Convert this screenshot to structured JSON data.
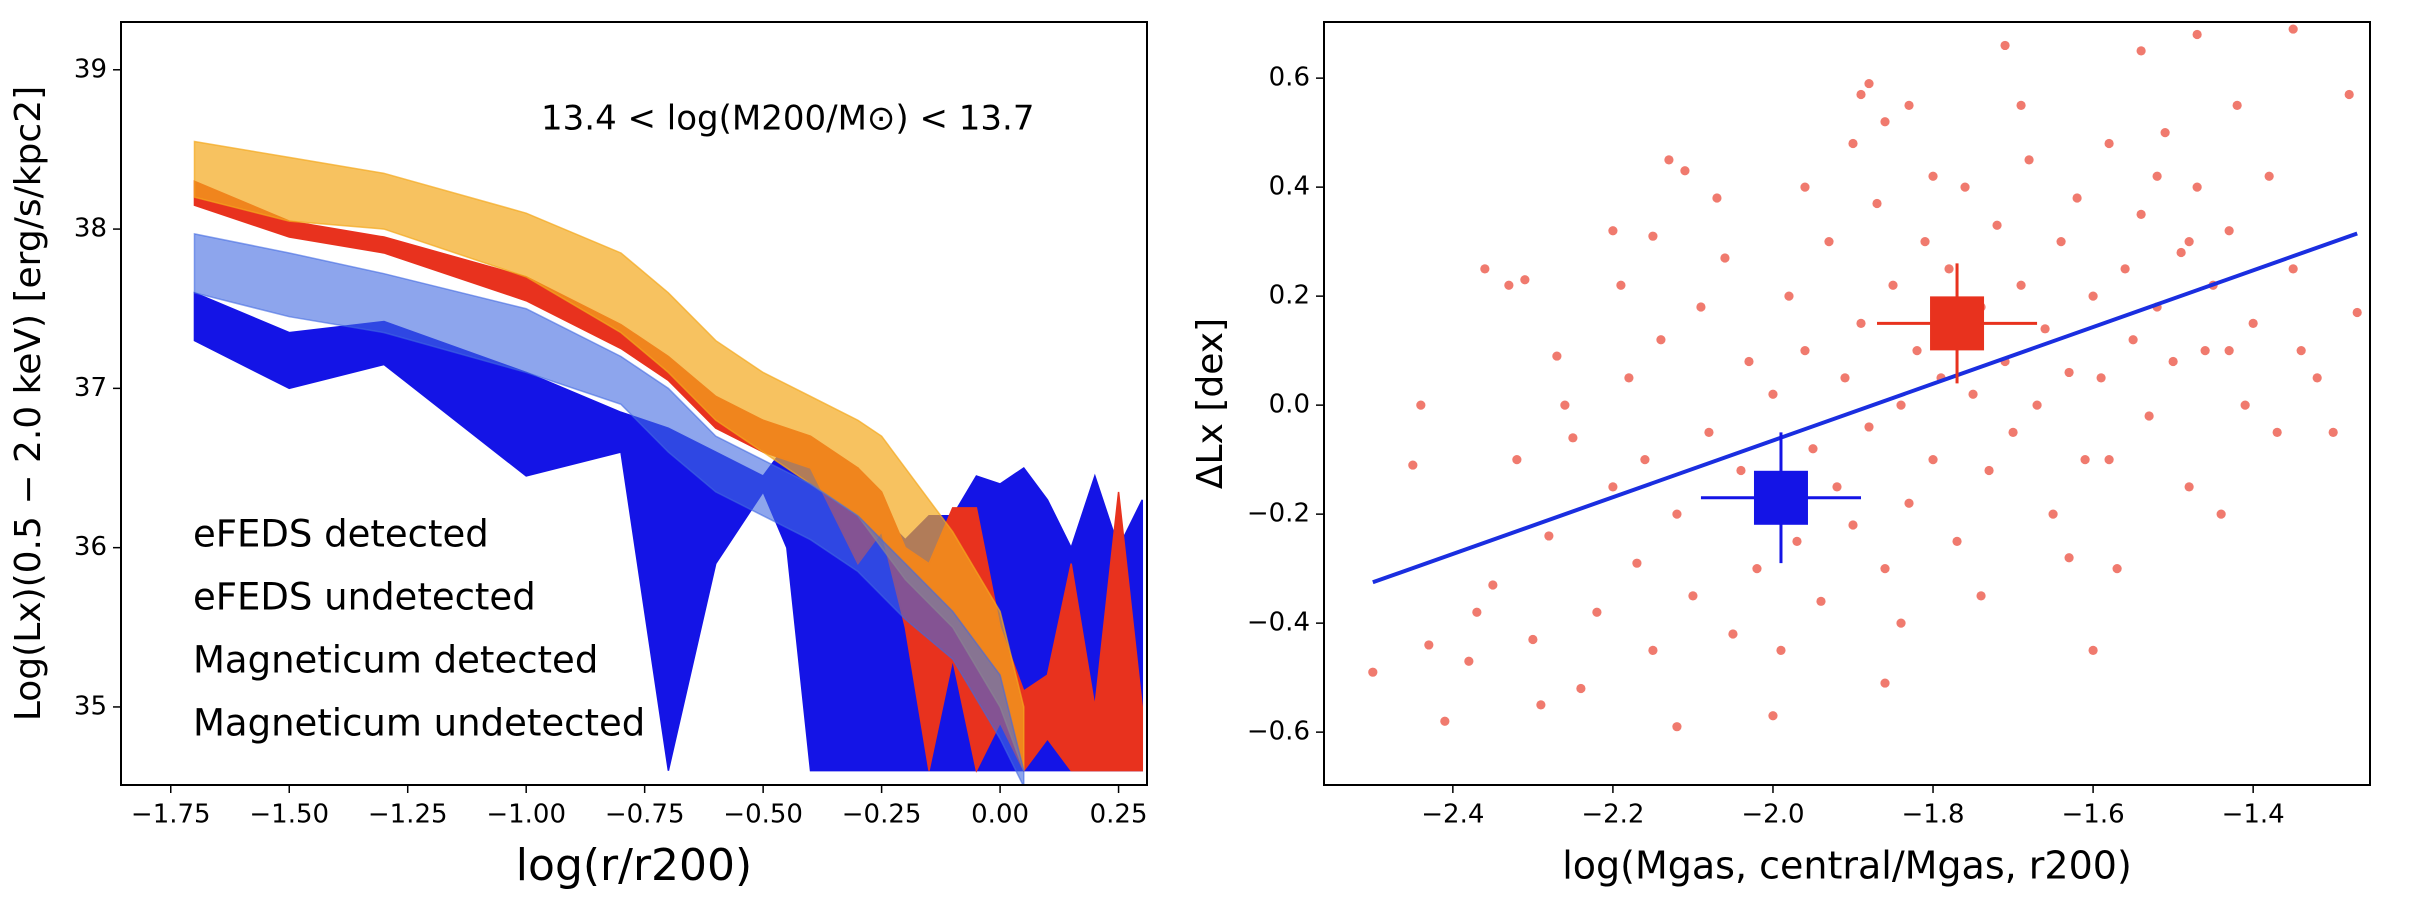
{
  "chart_data": [
    {
      "type": "area",
      "annotation": "13.4 < log(M200/M⊙) < 13.7",
      "xlabel": "log(r/r200)",
      "ylabel": "Log(Lx)(0.5 − 2.0 keV) [erg/s/kpc2]",
      "xlim": [
        -1.855,
        0.31
      ],
      "ylim": [
        34.51,
        39.3
      ],
      "xticks": [
        {
          "value": -1.75,
          "label": "−1.75"
        },
        {
          "value": -1.5,
          "label": "−1.50"
        },
        {
          "value": -1.25,
          "label": "−1.25"
        },
        {
          "value": -1.0,
          "label": "−1.00"
        },
        {
          "value": -0.75,
          "label": "−0.75"
        },
        {
          "value": -0.5,
          "label": "−0.50"
        },
        {
          "value": -0.25,
          "label": "−0.25"
        },
        {
          "value": 0,
          "label": "0.00"
        },
        0.25
      ],
      "yticks": [
        35,
        36,
        37,
        38,
        39
      ],
      "legend": "lower left",
      "series": [
        {
          "name": "eFEDS detected",
          "color": "#e8321e",
          "alpha": 1,
          "x": [
            -1.7,
            -1.5,
            -1.3,
            -1.0,
            -0.8,
            -0.7,
            -0.6,
            -0.5,
            -0.4,
            -0.3,
            -0.25,
            -0.2,
            -0.15,
            -0.1,
            -0.05,
            0.0,
            0.05,
            0.1,
            0.15,
            0.2,
            0.25,
            0.3
          ],
          "upper": [
            38.3,
            38.05,
            37.95,
            37.7,
            37.4,
            37.2,
            36.95,
            36.8,
            36.7,
            36.5,
            36.35,
            36.0,
            35.9,
            36.25,
            36.25,
            35.5,
            35.1,
            35.2,
            35.9,
            35.0,
            36.35,
            35.0
          ],
          "lower": [
            38.15,
            37.95,
            37.85,
            37.55,
            37.25,
            37.05,
            36.75,
            36.6,
            36.5,
            35.9,
            36.1,
            35.5,
            34.6,
            35.3,
            34.6,
            34.9,
            34.6,
            34.8,
            34.6,
            34.6,
            34.6,
            34.6
          ]
        },
        {
          "name": "eFEDS undetected",
          "color": "#1414e6",
          "alpha": 1,
          "x": [
            -1.7,
            -1.5,
            -1.3,
            -1.0,
            -0.8,
            -0.7,
            -0.6,
            -0.5,
            -0.45,
            -0.4,
            -0.3,
            -0.25,
            -0.2,
            -0.15,
            -0.1,
            -0.05,
            0.0,
            0.05,
            0.1,
            0.15,
            0.2,
            0.25,
            0.3
          ],
          "upper": [
            37.6,
            37.35,
            37.42,
            37.1,
            36.85,
            36.75,
            36.6,
            36.45,
            36.65,
            36.6,
            36.5,
            36.2,
            36.05,
            36.2,
            36.2,
            36.45,
            36.4,
            36.5,
            36.3,
            36.0,
            36.45,
            36.0,
            36.3
          ],
          "lower": [
            37.3,
            37.0,
            37.15,
            36.45,
            36.6,
            34.6,
            35.9,
            36.35,
            36.0,
            34.6,
            34.6,
            34.6,
            34.6,
            34.6,
            34.6,
            34.6,
            34.6,
            34.6,
            34.6,
            34.6,
            34.6,
            34.6,
            34.6
          ]
        },
        {
          "name": "Magneticum detected",
          "color": "#f4a81c",
          "alpha": 0.7,
          "x": [
            -1.7,
            -1.5,
            -1.3,
            -1.0,
            -0.8,
            -0.7,
            -0.6,
            -0.5,
            -0.4,
            -0.3,
            -0.25,
            -0.2,
            -0.1,
            0.0,
            0.05
          ],
          "upper": [
            38.55,
            38.45,
            38.35,
            38.1,
            37.85,
            37.6,
            37.3,
            37.1,
            36.95,
            36.8,
            36.7,
            36.5,
            36.1,
            35.6,
            35.0
          ],
          "lower": [
            38.2,
            38.05,
            38.0,
            37.7,
            37.35,
            37.1,
            36.8,
            36.6,
            36.4,
            36.2,
            36.0,
            35.8,
            35.5,
            35.0,
            34.6
          ]
        },
        {
          "name": "Magneticum undetected",
          "color": "#4169e1",
          "alpha": 0.6,
          "x": [
            -1.7,
            -1.5,
            -1.3,
            -1.0,
            -0.8,
            -0.7,
            -0.6,
            -0.5,
            -0.4,
            -0.3,
            -0.2,
            -0.1,
            0.0,
            0.05
          ],
          "upper": [
            37.97,
            37.85,
            37.72,
            37.5,
            37.2,
            37.0,
            36.7,
            36.55,
            36.4,
            36.2,
            35.9,
            35.6,
            35.2,
            34.6
          ],
          "lower": [
            37.6,
            37.45,
            37.35,
            37.1,
            36.9,
            36.6,
            36.35,
            36.2,
            36.05,
            35.85,
            35.55,
            35.3,
            34.8,
            34.5
          ]
        }
      ]
    },
    {
      "type": "scatter",
      "xlabel": "log(Mgas, central/Mgas, r200)",
      "ylabel": "ΔLx [dex]",
      "xlim": [
        -2.561,
        -1.254
      ],
      "ylim": [
        -0.697,
        0.703
      ],
      "xticks": [
        {
          "value": -2.4,
          "label": "−2.4"
        },
        {
          "value": -2.2,
          "label": "−2.2"
        },
        {
          "value": -2.0,
          "label": "−2.0"
        },
        {
          "value": -1.8,
          "label": "−1.8"
        },
        {
          "value": -1.6,
          "label": "−1.6"
        },
        {
          "value": -1.4,
          "label": "−1.4"
        }
      ],
      "yticks": [
        {
          "value": -0.6,
          "label": "−0.6"
        },
        {
          "value": -0.4,
          "label": "−0.4"
        },
        {
          "value": -0.2,
          "label": "−0.2"
        },
        {
          "value": 0,
          "label": "0.0"
        },
        0.2,
        0.4,
        0.6
      ],
      "color": "#f07a6e",
      "x": [
        -2.5,
        -2.43,
        -2.41,
        -2.44,
        -2.45,
        -2.36,
        -2.33,
        -2.31,
        -2.2,
        -2.15,
        -2.13,
        -2.11,
        -1.88,
        -1.89,
        -1.83,
        -1.86,
        -1.71,
        -1.54,
        -1.47,
        -1.35,
        -1.28,
        -1.27,
        -1.3,
        -1.32,
        -1.6,
        -1.86,
        -2.12,
        -2.0,
        -2.37,
        -2.38,
        -2.35,
        -2.3,
        -2.28,
        -2.25,
        -2.22,
        -2.2,
        -2.18,
        -2.17,
        -2.15,
        -2.14,
        -2.12,
        -2.1,
        -2.09,
        -2.08,
        -2.06,
        -2.05,
        -2.04,
        -2.03,
        -2.02,
        -2.0,
        -1.99,
        -1.98,
        -1.97,
        -1.96,
        -1.95,
        -1.94,
        -1.93,
        -1.92,
        -1.91,
        -1.9,
        -1.89,
        -1.88,
        -1.87,
        -1.86,
        -1.85,
        -1.84,
        -1.83,
        -1.82,
        -1.81,
        -1.8,
        -1.79,
        -1.78,
        -1.77,
        -1.76,
        -1.75,
        -1.74,
        -1.73,
        -1.72,
        -1.71,
        -1.7,
        -1.69,
        -1.68,
        -1.67,
        -1.66,
        -1.65,
        -1.64,
        -1.63,
        -1.62,
        -1.61,
        -1.6,
        -1.59,
        -1.58,
        -1.57,
        -1.56,
        -1.55,
        -1.54,
        -1.53,
        -1.52,
        -1.51,
        -1.5,
        -1.49,
        -1.48,
        -1.47,
        -1.46,
        -1.45,
        -1.44,
        -1.43,
        -1.42,
        -1.41,
        -1.4,
        -1.38,
        -1.37,
        -1.35,
        -1.34,
        -2.27,
        -2.24,
        -2.19,
        -2.16,
        -2.07,
        -2.01,
        -1.96,
        -1.9,
        -1.84,
        -1.8,
        -1.74,
        -1.69,
        -1.63,
        -1.58,
        -1.52,
        -1.48,
        -1.43,
        -2.32,
        -2.29,
        -2.26
      ],
      "y": [
        -0.49,
        -0.44,
        -0.58,
        0.0,
        -0.11,
        0.25,
        0.22,
        0.23,
        0.32,
        0.31,
        0.45,
        0.43,
        0.59,
        0.57,
        0.55,
        0.52,
        0.66,
        0.65,
        0.68,
        0.69,
        0.57,
        0.17,
        -0.05,
        0.05,
        -0.45,
        -0.51,
        -0.59,
        -0.57,
        -0.38,
        -0.47,
        -0.33,
        -0.43,
        -0.24,
        -0.06,
        -0.38,
        -0.15,
        0.05,
        -0.29,
        -0.45,
        0.12,
        -0.2,
        -0.35,
        0.18,
        -0.05,
        0.27,
        -0.42,
        -0.12,
        0.08,
        -0.3,
        0.02,
        -0.45,
        0.2,
        -0.25,
        0.1,
        -0.08,
        -0.36,
        0.3,
        -0.15,
        0.05,
        -0.22,
        0.15,
        -0.04,
        0.37,
        -0.3,
        0.22,
        0.0,
        -0.18,
        0.1,
        0.3,
        -0.1,
        0.05,
        0.25,
        -0.25,
        0.4,
        0.02,
        0.18,
        -0.12,
        0.33,
        0.08,
        -0.05,
        0.22,
        0.45,
        0.0,
        0.14,
        -0.2,
        0.3,
        0.06,
        0.38,
        -0.1,
        0.2,
        0.05,
        0.48,
        -0.3,
        0.25,
        0.12,
        0.35,
        -0.02,
        0.18,
        0.5,
        0.08,
        0.28,
        -0.15,
        0.4,
        0.1,
        0.22,
        -0.2,
        0.32,
        0.55,
        0.0,
        0.15,
        0.42,
        -0.05,
        0.25,
        0.1,
        0.09,
        -0.52,
        0.22,
        -0.1,
        0.38,
        -0.2,
        0.4,
        0.48,
        -0.4,
        0.42,
        -0.35,
        0.55,
        -0.28,
        -0.1,
        0.42,
        0.3,
        0.1,
        -0.1,
        -0.55,
        0.0
      ],
      "fit": {
        "color": "#1a2ee0",
        "x": [
          -2.5,
          -1.27
        ],
        "y": [
          -0.325,
          0.315
        ]
      },
      "markers": [
        {
          "color": "#e8321e",
          "x": -1.77,
          "y": 0.15,
          "xerr": 0.1,
          "yerr": 0.11
        },
        {
          "color": "#1414e6",
          "x": -1.99,
          "y": -0.17,
          "xerr": 0.1,
          "yerr": 0.12
        }
      ]
    }
  ]
}
